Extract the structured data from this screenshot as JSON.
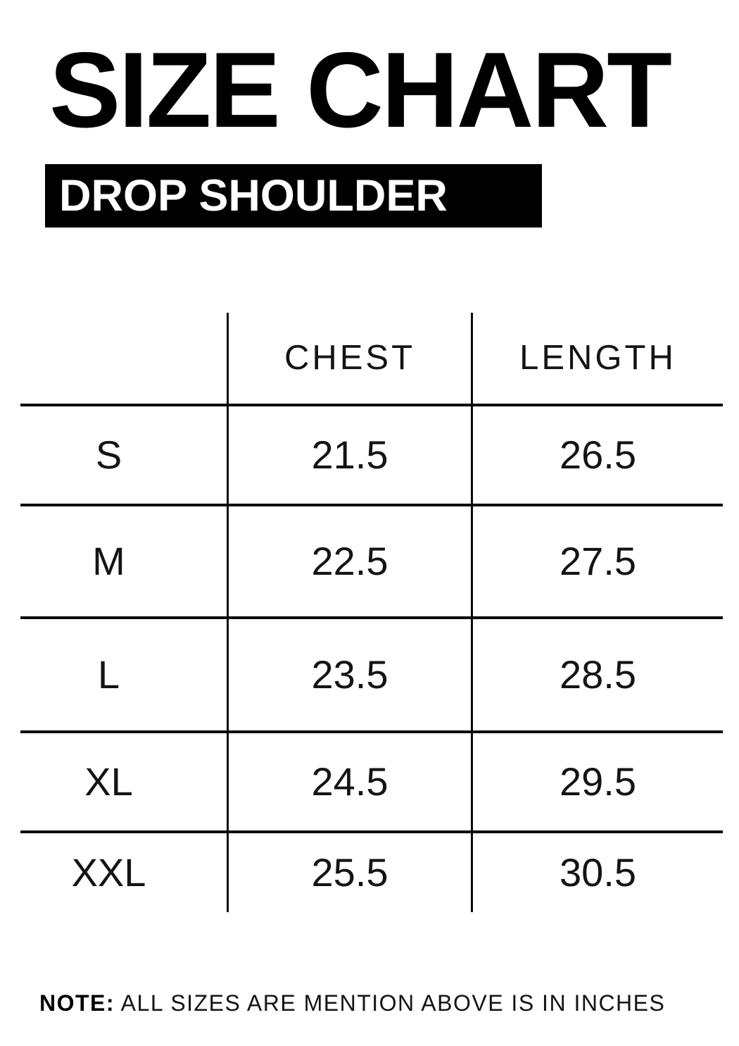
{
  "title": "SIZE CHART",
  "banner": "DROP SHOULDER",
  "table": {
    "headers": {
      "chest": "CHEST",
      "length": "LENGTH"
    },
    "rows": [
      {
        "size": "S",
        "chest": "21.5",
        "length": "26.5"
      },
      {
        "size": "M",
        "chest": "22.5",
        "length": "27.5"
      },
      {
        "size": "L",
        "chest": "23.5",
        "length": "28.5"
      },
      {
        "size": "XL",
        "chest": "24.5",
        "length": "29.5"
      },
      {
        "size": "XXL",
        "chest": "25.5",
        "length": "30.5"
      }
    ]
  },
  "note": {
    "label": "NOTE:",
    "text": " ALL SIZES ARE MENTION ABOVE IS IN INCHES"
  },
  "colors": {
    "ink": "#000000",
    "background": "#ffffff"
  },
  "chart_data": {
    "type": "table",
    "title": "SIZE CHART",
    "subtitle": "DROP SHOULDER",
    "columns": [
      "",
      "CHEST",
      "LENGTH"
    ],
    "rows": [
      [
        "S",
        21.5,
        26.5
      ],
      [
        "M",
        22.5,
        27.5
      ],
      [
        "L",
        23.5,
        28.5
      ],
      [
        "XL",
        24.5,
        29.5
      ],
      [
        "XXL",
        25.5,
        30.5
      ]
    ],
    "units": "INCHES"
  }
}
